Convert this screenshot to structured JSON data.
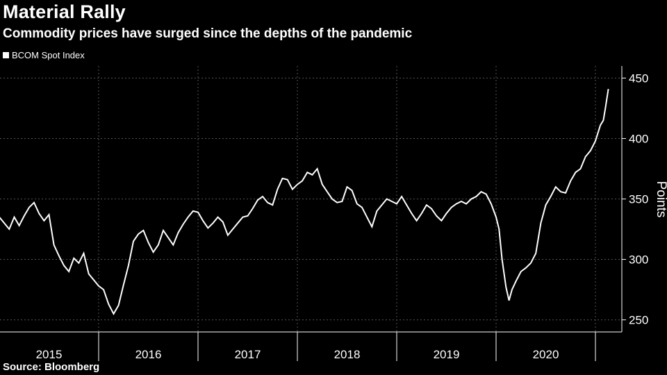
{
  "chart_data": {
    "type": "line",
    "title": "Material Rally",
    "subtitle": "Commodity prices have surged since the depths of the pandemic",
    "source": "Source: Bloomberg",
    "ylabel": "Points",
    "ylim": [
      240,
      460
    ],
    "yticks": [
      250,
      300,
      350,
      400,
      450
    ],
    "xlim": [
      2015.0,
      2021.25
    ],
    "year_labels": [
      "2015",
      "2016",
      "2017",
      "2018",
      "2019",
      "2020"
    ],
    "grid": true,
    "legend_position": "top-left",
    "colors": {
      "background": "#000000",
      "line": "#ffffff",
      "grid": "#555555"
    },
    "series": [
      {
        "name": "BCOM Spot Index",
        "x": [
          2015.0,
          2015.05,
          2015.1,
          2015.15,
          2015.2,
          2015.25,
          2015.3,
          2015.35,
          2015.4,
          2015.45,
          2015.5,
          2015.55,
          2015.6,
          2015.65,
          2015.7,
          2015.75,
          2015.8,
          2015.85,
          2015.9,
          2015.95,
          2016.0,
          2016.05,
          2016.1,
          2016.15,
          2016.2,
          2016.25,
          2016.3,
          2016.35,
          2016.4,
          2016.45,
          2016.5,
          2016.55,
          2016.6,
          2016.65,
          2016.7,
          2016.75,
          2016.8,
          2016.85,
          2016.9,
          2016.95,
          2017.0,
          2017.05,
          2017.1,
          2017.15,
          2017.2,
          2017.25,
          2017.3,
          2017.35,
          2017.4,
          2017.45,
          2017.5,
          2017.55,
          2017.6,
          2017.65,
          2017.7,
          2017.75,
          2017.8,
          2017.85,
          2017.9,
          2017.95,
          2018.0,
          2018.05,
          2018.1,
          2018.15,
          2018.2,
          2018.25,
          2018.3,
          2018.35,
          2018.4,
          2018.45,
          2018.5,
          2018.55,
          2018.6,
          2018.65,
          2018.7,
          2018.75,
          2018.8,
          2018.85,
          2018.9,
          2018.95,
          2019.0,
          2019.05,
          2019.1,
          2019.15,
          2019.2,
          2019.25,
          2019.3,
          2019.35,
          2019.4,
          2019.45,
          2019.5,
          2019.55,
          2019.6,
          2019.65,
          2019.7,
          2019.75,
          2019.8,
          2019.85,
          2019.9,
          2019.95,
          2020.0,
          2020.03,
          2020.06,
          2020.1,
          2020.13,
          2020.16,
          2020.2,
          2020.25,
          2020.3,
          2020.35,
          2020.4,
          2020.45,
          2020.5,
          2020.55,
          2020.6,
          2020.65,
          2020.7,
          2020.75,
          2020.8,
          2020.85,
          2020.9,
          2020.95,
          2021.0,
          2021.05,
          2021.08,
          2021.1,
          2021.13
        ],
        "values": [
          335,
          330,
          325,
          335,
          328,
          336,
          343,
          347,
          338,
          332,
          337,
          312,
          303,
          295,
          290,
          301,
          297,
          305,
          288,
          283,
          278,
          275,
          263,
          255,
          262,
          279,
          295,
          315,
          321,
          324,
          314,
          306,
          312,
          324,
          318,
          312,
          322,
          329,
          335,
          340,
          339,
          332,
          326,
          330,
          335,
          331,
          320,
          325,
          330,
          335,
          336,
          342,
          349,
          352,
          347,
          345,
          358,
          367,
          366,
          358,
          362,
          365,
          372,
          370,
          375,
          362,
          356,
          350,
          347,
          348,
          360,
          357,
          346,
          343,
          335,
          327,
          340,
          345,
          350,
          348,
          346,
          352,
          345,
          338,
          332,
          338,
          345,
          342,
          336,
          332,
          338,
          343,
          346,
          348,
          346,
          350,
          352,
          356,
          354,
          346,
          335,
          325,
          300,
          277,
          266,
          275,
          282,
          290,
          293,
          297,
          305,
          330,
          345,
          352,
          360,
          356,
          355,
          365,
          372,
          375,
          385,
          390,
          398,
          411,
          415,
          425,
          441
        ]
      }
    ]
  }
}
